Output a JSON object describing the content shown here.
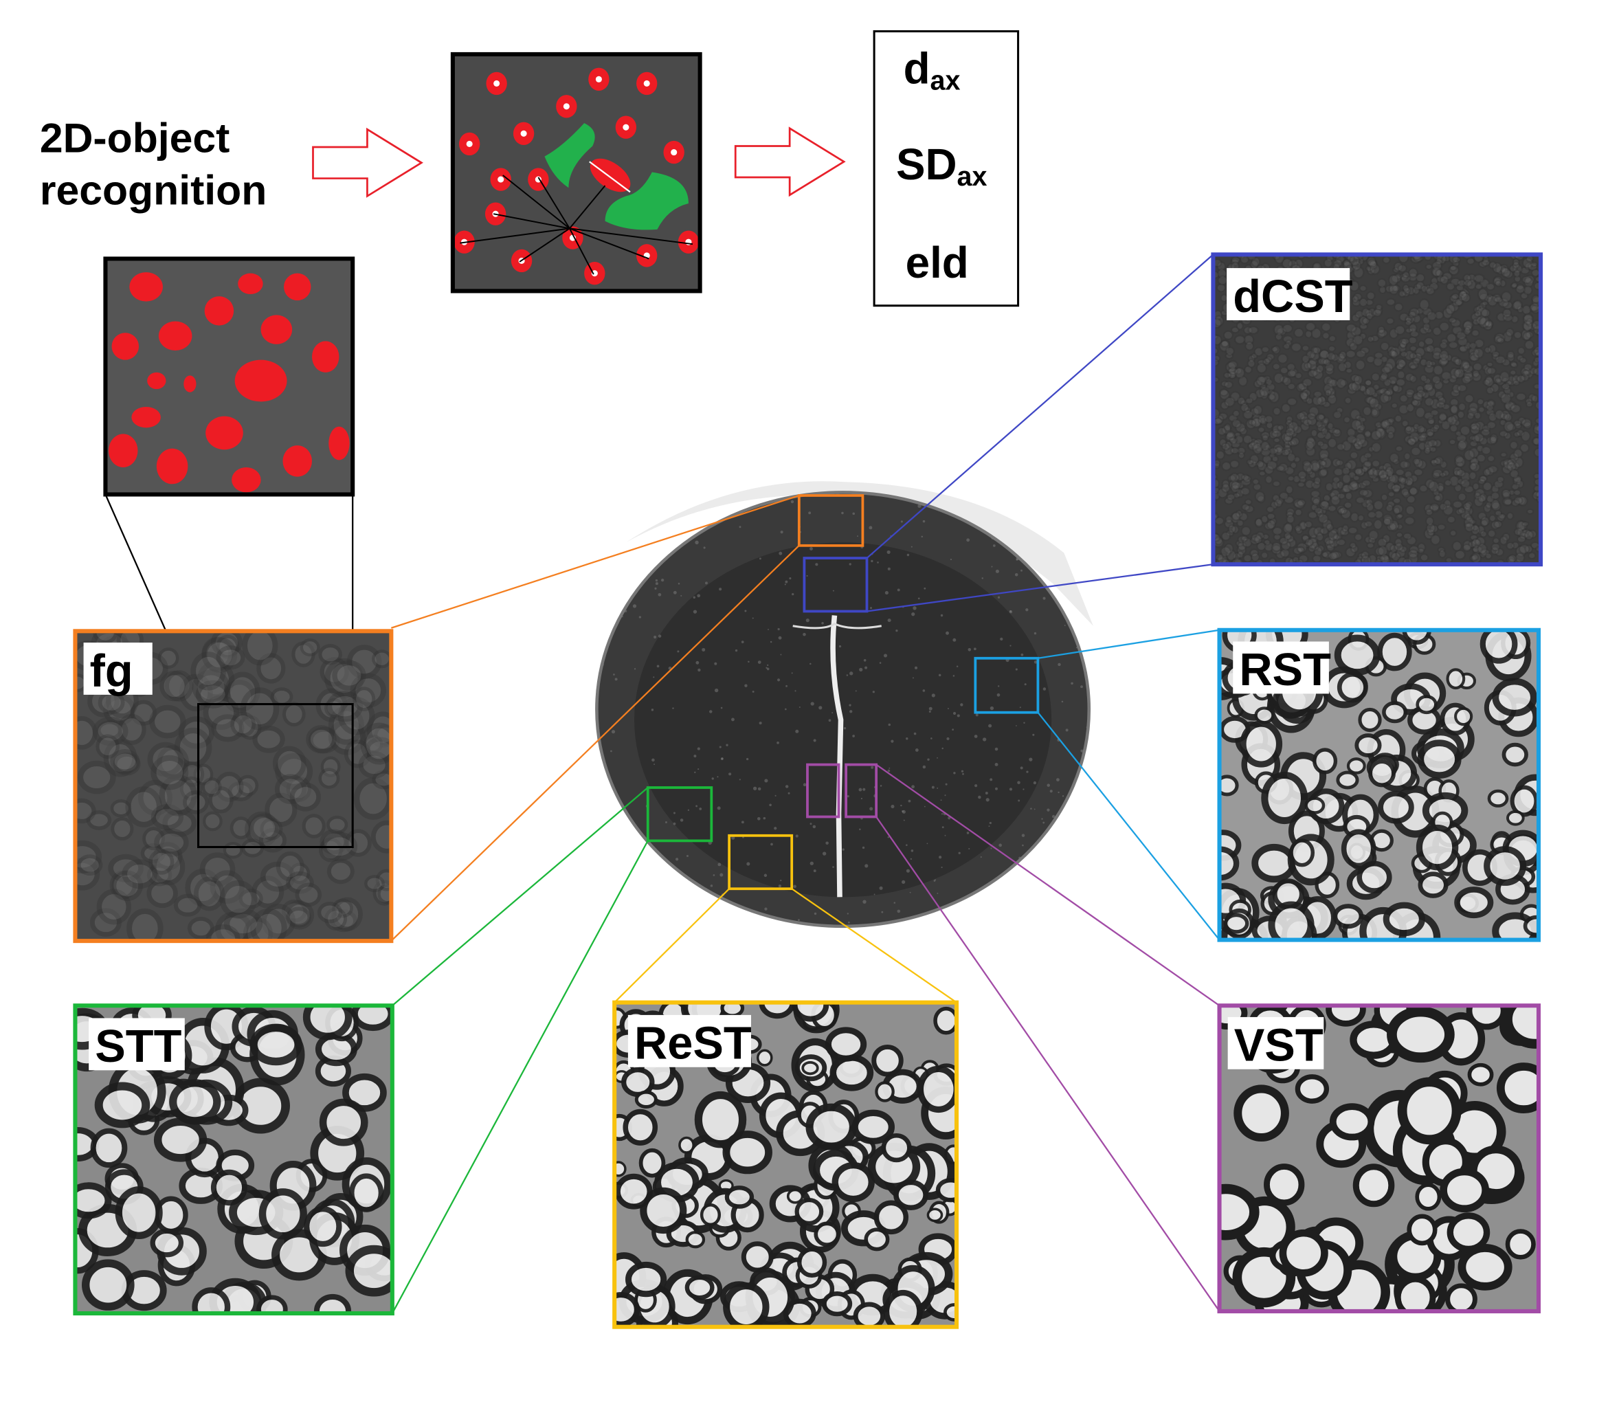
{
  "pipeline": {
    "step_label_line1": "2D-object",
    "step_label_line2": "recognition",
    "outputs": [
      {
        "main": "d",
        "sub": "ax"
      },
      {
        "main": "SD",
        "sub": "ax"
      },
      {
        "main": "eld",
        "sub": ""
      }
    ]
  },
  "panels": [
    {
      "id": "fg",
      "label": "fg",
      "color": "#f47f20"
    },
    {
      "id": "dCST",
      "label": "dCST",
      "color": "#3f47c5"
    },
    {
      "id": "RST",
      "label": "RST",
      "color": "#1ba0e2"
    },
    {
      "id": "STT",
      "label": "STT",
      "color": "#1bb73a"
    },
    {
      "id": "ReST",
      "label": "ReST",
      "color": "#f8c20e"
    },
    {
      "id": "VST",
      "label": "VST",
      "color": "#a24ca6"
    }
  ],
  "colors": {
    "segmented_axon": "#ed1c24",
    "excluded_object": "#22b14c",
    "arrow_outline": "#e8202a"
  }
}
